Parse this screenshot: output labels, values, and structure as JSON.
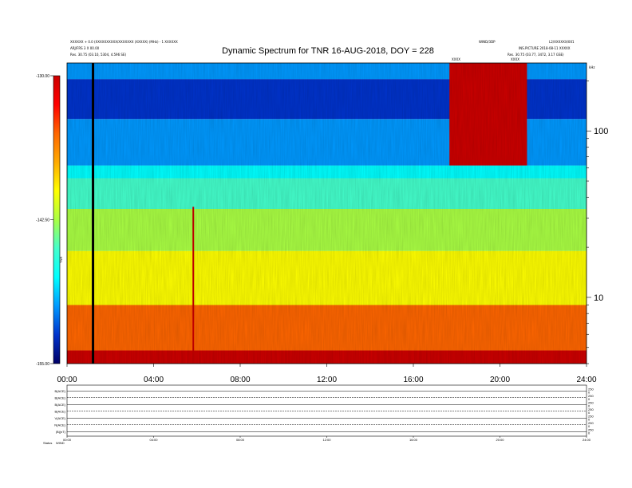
{
  "header": {
    "title": "Dynamic Spectrum for TNR 16-AUG-2018, DOY = 228",
    "left_line1": "XXXXXX + 0.0 (XXXXXXXXXX/XXXXXXX (XXXXX) (MHz) - 1 XXXXXX",
    "left_line2": "ARJ/FRS 3 X 00.00",
    "left_line3": "Res.   30.75 (03.10, 5304, 4.596 SE)",
    "right_line1": "WIND/3DP",
    "right_line2": "L2/XXXXXX/001",
    "right_line3": "INS.PICTURE 2018-08-11 XXXXX",
    "right_line4": "Res.   30.75 (03.77, 3472, 3.17 GSE)",
    "event_label_1": "XXXX",
    "event_label_2": "XXXX",
    "corner_label": "kHz"
  },
  "colorbar": {
    "ticks": [
      "-130.00",
      "-142.50",
      "-155.00"
    ],
    "unit_label": "TNR",
    "colors": [
      "#cc0000",
      "#ff0000",
      "#ff6600",
      "#ffaa00",
      "#ffff00",
      "#aaff44",
      "#44ffcc",
      "#00ffff",
      "#0099ff",
      "#0033cc",
      "#000066"
    ]
  },
  "chart_data": {
    "type": "heatmap",
    "title": "Dynamic Spectrum for TNR 16-AUG-2018, DOY = 228",
    "xlabel": "",
    "ylabel": "kHz",
    "x_ticks": [
      "00:00",
      "04:00",
      "08:00",
      "12:00",
      "16:00",
      "20:00",
      "24:00"
    ],
    "xlim": [
      "00:00",
      "24:00"
    ],
    "y_scale": "log",
    "y_ticks": [
      10,
      100
    ],
    "ylim": [
      4,
      256
    ],
    "color_range": [
      -155.0,
      -130.0
    ],
    "color_ticks": [
      -130.0,
      -142.5,
      -155.0
    ],
    "bands": [
      {
        "from_khz": 4,
        "to_khz": 4.8,
        "level": -130
      },
      {
        "from_khz": 4.8,
        "to_khz": 9,
        "level": -136
      },
      {
        "from_khz": 9,
        "to_khz": 19,
        "level": -139
      },
      {
        "from_khz": 19,
        "to_khz": 34,
        "level": -142
      },
      {
        "from_khz": 34,
        "to_khz": 52,
        "level": -144
      },
      {
        "from_khz": 52,
        "to_khz": 62,
        "level": -147
      },
      {
        "from_khz": 62,
        "to_khz": 118,
        "level": -150
      },
      {
        "from_khz": 118,
        "to_khz": 205,
        "level": -153
      },
      {
        "from_khz": 205,
        "to_khz": 256,
        "level": -151
      }
    ],
    "events": [
      {
        "type": "data_gap",
        "time": "01:12"
      },
      {
        "type": "burst",
        "time": "05:50",
        "from_khz": 4,
        "to_khz": 35,
        "level": -130
      },
      {
        "type": "burst",
        "from_time": "17:40",
        "to_time": "21:15",
        "from_khz": 62,
        "to_khz": 256,
        "level": -130
      }
    ]
  },
  "lower_panel": {
    "rows": [
      {
        "label": "B(ACE)",
        "right_ticks": [
          "250",
          "0"
        ]
      },
      {
        "label": "B(ACE)",
        "right_ticks": [
          "250",
          "0"
        ]
      },
      {
        "label": "B(ACE)",
        "right_ticks": [
          "250",
          "0"
        ]
      },
      {
        "label": "B(ACE)",
        "right_ticks": [
          "250",
          "0"
        ]
      },
      {
        "label": "V(ACE)",
        "right_ticks": [
          "250",
          "0"
        ]
      },
      {
        "label": "N(ACE)",
        "right_ticks": [
          "250",
          "0"
        ]
      },
      {
        "label": "|B|(nT)",
        "right_ticks": [
          "250",
          "0"
        ]
      }
    ],
    "x_ticks": [
      "00:00",
      "04:00",
      "08:00",
      "12:00",
      "16:00",
      "20:00",
      "24:00"
    ],
    "footer_label": "Status",
    "footer_value": "WIND"
  }
}
